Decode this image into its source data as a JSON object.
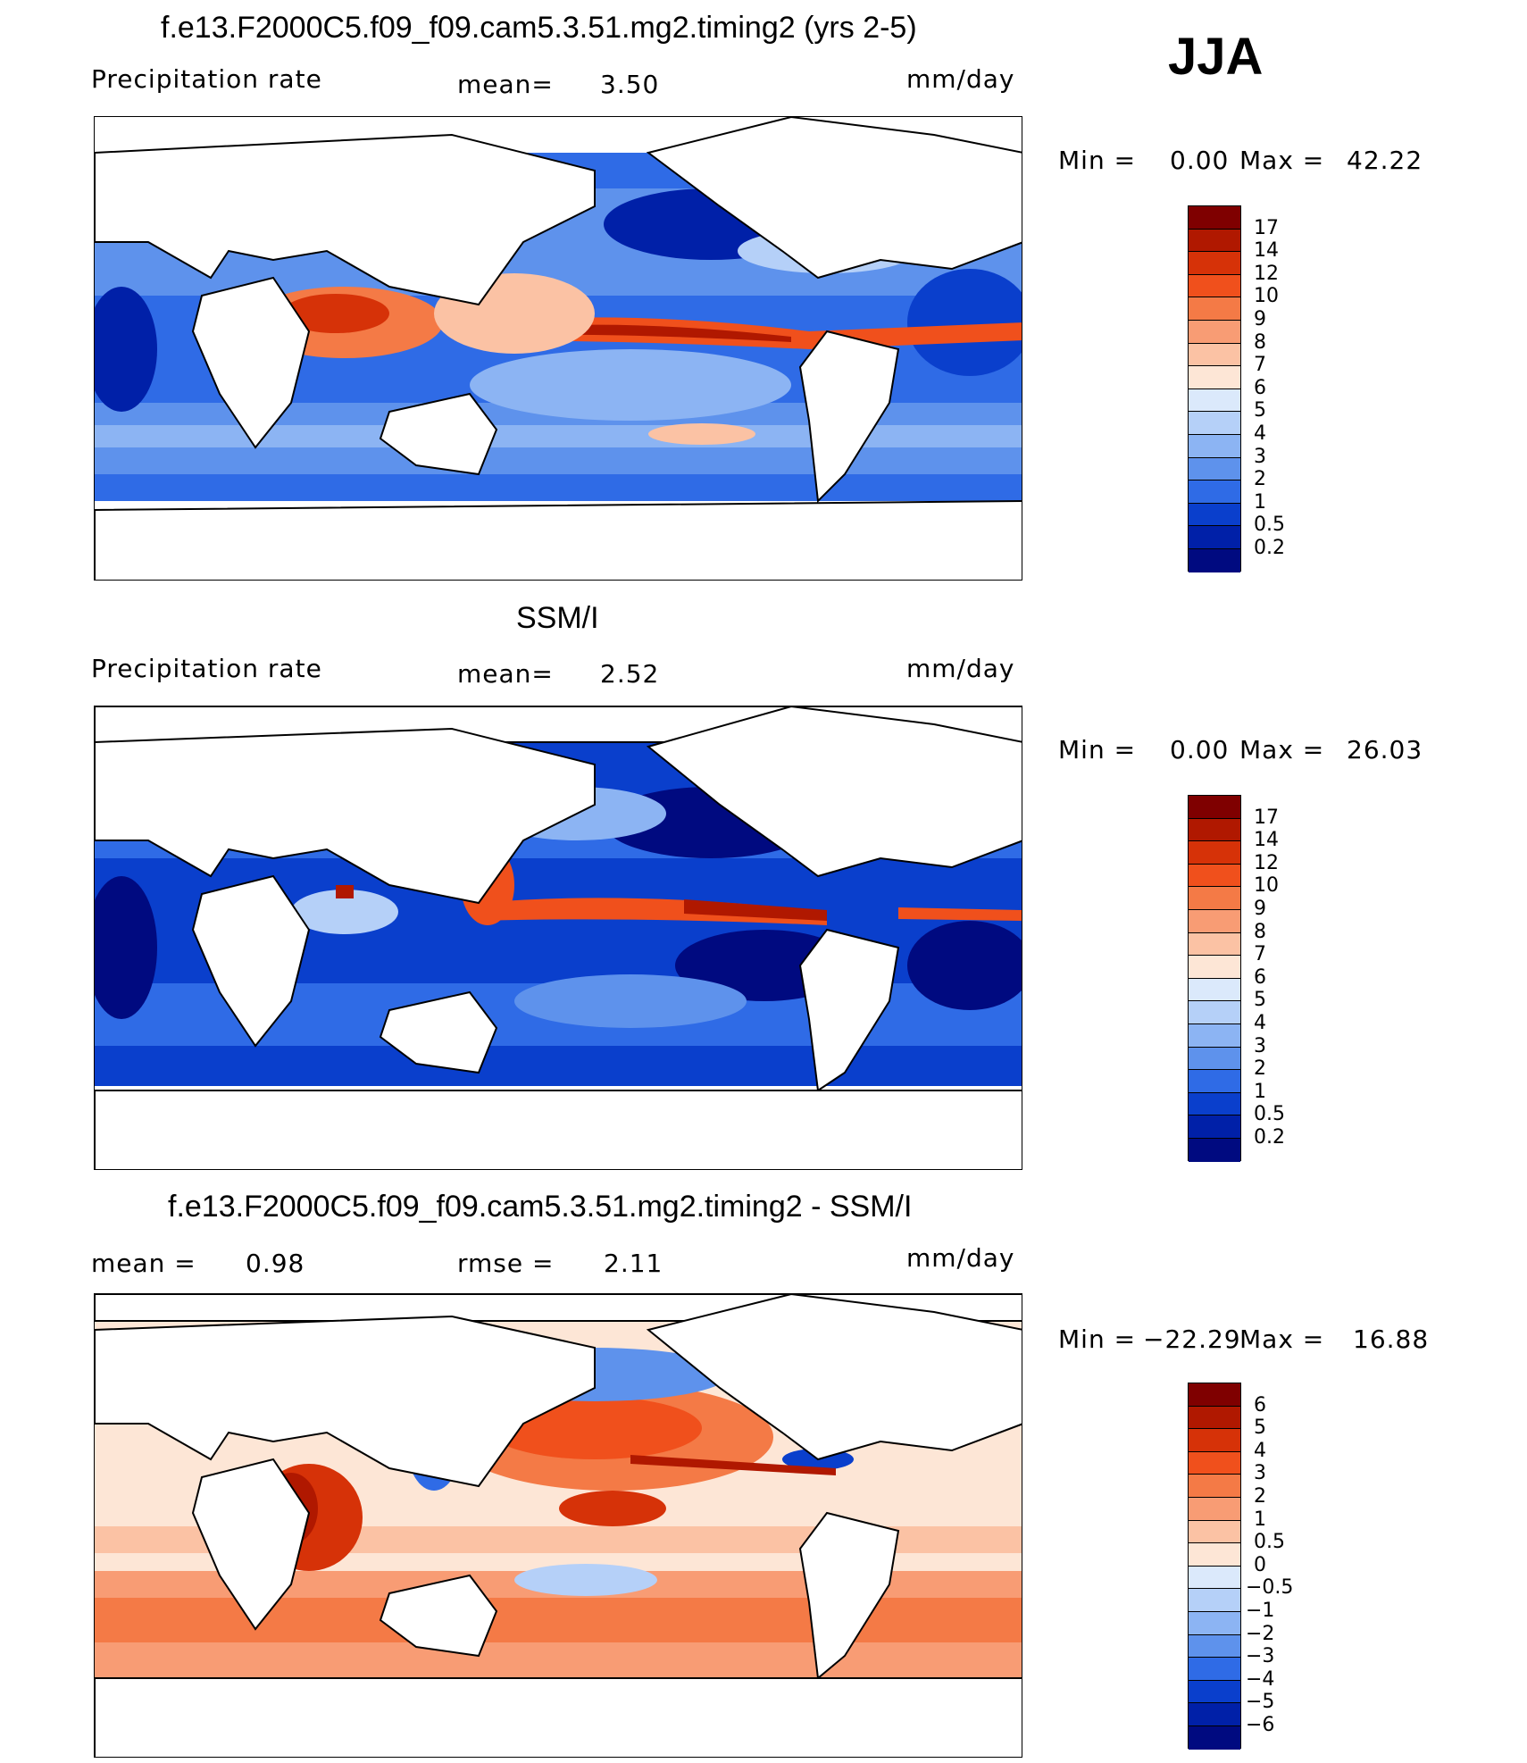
{
  "season_label": "JJA",
  "panels": [
    {
      "title": "f.e13.F2000C5.f09_f09.cam5.3.51.mg2.timing2 (yrs 2-5)",
      "variable": "Precipitation rate",
      "stat1_label": "mean=",
      "stat1_value": "3.50",
      "stat2_label": "",
      "stat2_value": "",
      "units": "mm/day",
      "min_label": "Min =",
      "min_value": "0.00",
      "max_label": "Max =",
      "max_value": "42.22",
      "legend_levels": [
        "17",
        "14",
        "12",
        "10",
        "9",
        "8",
        "7",
        "6",
        "5",
        "4",
        "3",
        "2",
        "1",
        "0.5",
        "0.2"
      ]
    },
    {
      "title": "SSM/I",
      "variable": "Precipitation rate",
      "stat1_label": "mean=",
      "stat1_value": "2.52",
      "stat2_label": "",
      "stat2_value": "",
      "units": "mm/day",
      "min_label": "Min =",
      "min_value": "0.00",
      "max_label": "Max =",
      "max_value": "26.03",
      "legend_levels": [
        "17",
        "14",
        "12",
        "10",
        "9",
        "8",
        "7",
        "6",
        "5",
        "4",
        "3",
        "2",
        "1",
        "0.5",
        "0.2"
      ]
    },
    {
      "title": "f.e13.F2000C5.f09_f09.cam5.3.51.mg2.timing2 - SSM/I",
      "variable": "",
      "stat1_label": "mean =",
      "stat1_value": "0.98",
      "stat2_label": "rmse =",
      "stat2_value": "2.11",
      "units": "mm/day",
      "min_label": "Min =",
      "min_value": "−22.29",
      "max_label": "Max =",
      "max_value": "16.88",
      "legend_levels": [
        "6",
        "5",
        "4",
        "3",
        "2",
        "1",
        "0.5",
        "0",
        "−0.5",
        "−1",
        "−2",
        "−3",
        "−4",
        "−5",
        "−6"
      ]
    }
  ],
  "colors": {
    "precip_scale": [
      "#7f0000",
      "#b01800",
      "#d63208",
      "#f0501c",
      "#f47a46",
      "#f89c74",
      "#fbc2a4",
      "#fde6d6",
      "#dbe9fb",
      "#b5d0f8",
      "#8cb4f3",
      "#5e92ec",
      "#2f6be6",
      "#0a3fcc",
      "#0020a8",
      "#000a80"
    ],
    "diff_scale": [
      "#7f0000",
      "#b01800",
      "#d63208",
      "#f0501c",
      "#f47a46",
      "#f89c74",
      "#fbc2a4",
      "#fde6d6",
      "#dbe9fb",
      "#b5d0f8",
      "#8cb4f3",
      "#5e92ec",
      "#2f6be6",
      "#0a3fcc",
      "#0020a8",
      "#000a80"
    ]
  }
}
